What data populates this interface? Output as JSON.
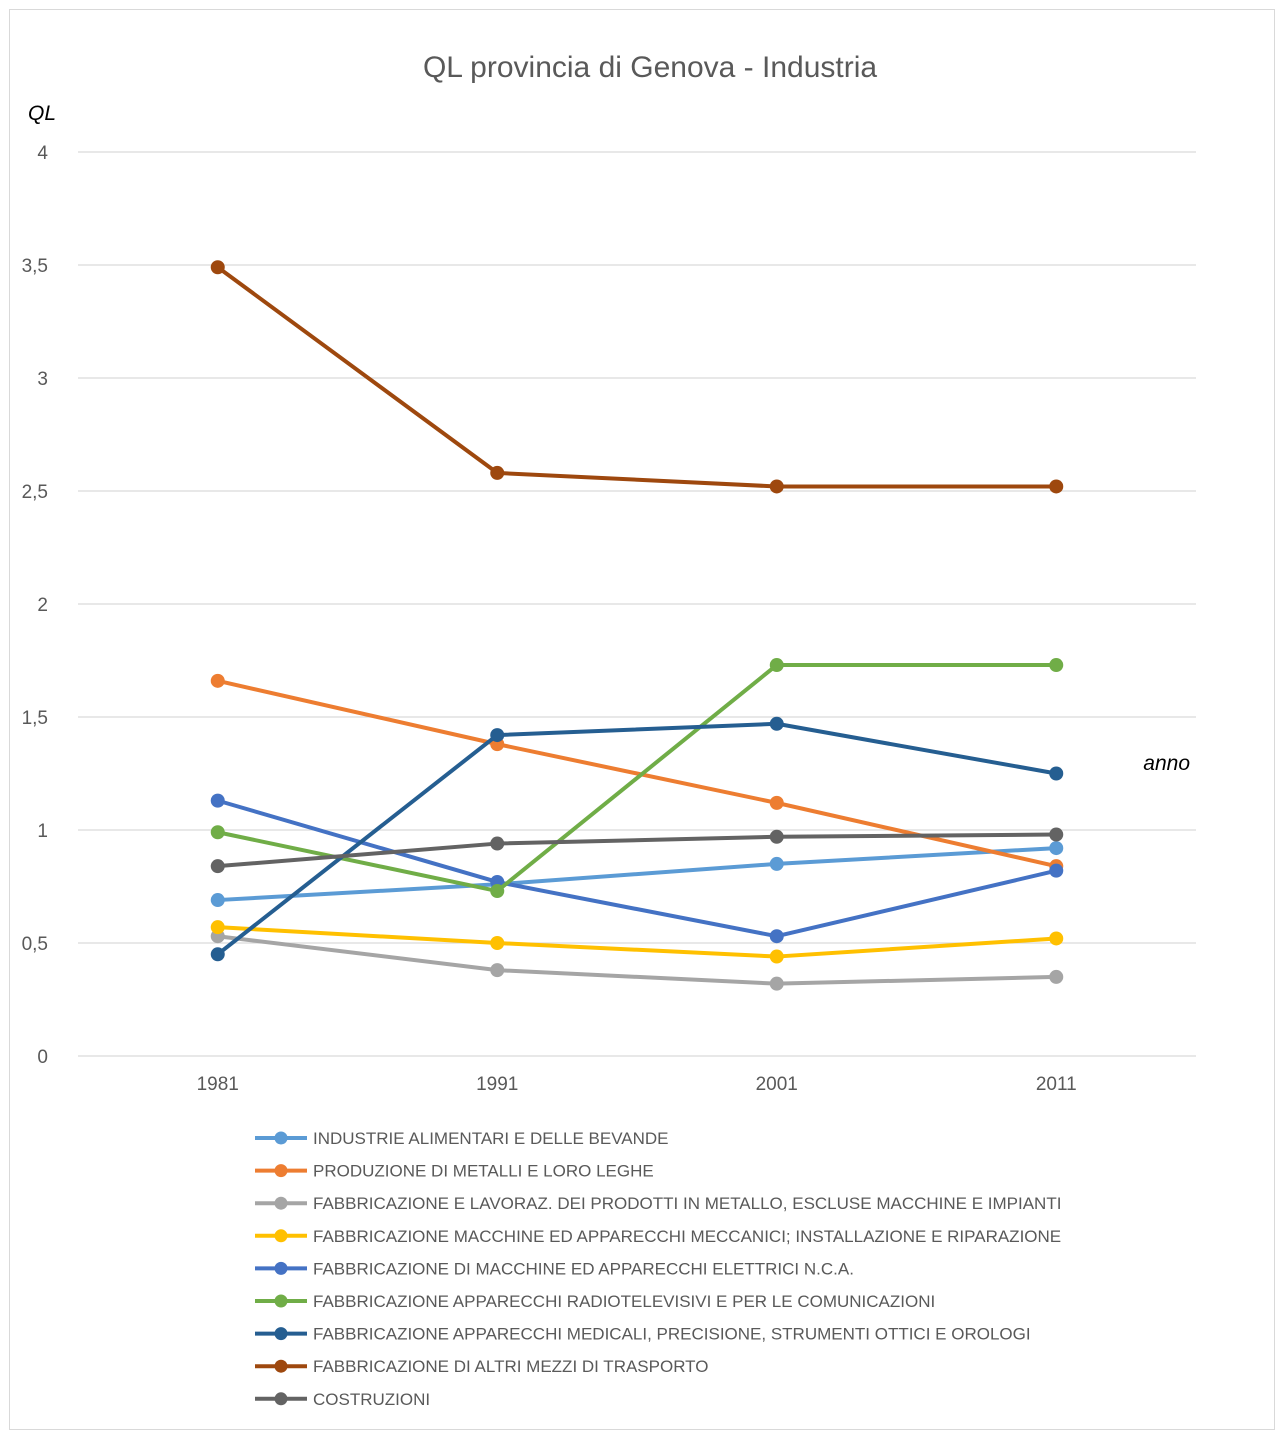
{
  "chart_data": {
    "type": "line",
    "title": "QL provincia di Genova - Industria",
    "ylabel": "QL",
    "xlabel": "anno",
    "categories": [
      "1981",
      "1991",
      "2001",
      "2011"
    ],
    "ylim": [
      0,
      4
    ],
    "yticks": [
      "0",
      "0,5",
      "1",
      "1,5",
      "2",
      "2,5",
      "3",
      "3,5",
      "4"
    ],
    "grid": true,
    "legend_position": "bottom",
    "series": [
      {
        "name": "INDUSTRIE ALIMENTARI E DELLE BEVANDE",
        "color": "#5b9bd5",
        "values": [
          0.69,
          0.76,
          0.85,
          0.92
        ]
      },
      {
        "name": "PRODUZIONE DI METALLI E LORO LEGHE",
        "color": "#ed7d31",
        "values": [
          1.66,
          1.38,
          1.12,
          0.84
        ]
      },
      {
        "name": "FABBRICAZIONE E LAVORAZ. DEI PRODOTTI IN METALLO, ESCLUSE MACCHINE E IMPIANTI",
        "color": "#a5a5a5",
        "values": [
          0.53,
          0.38,
          0.32,
          0.35
        ]
      },
      {
        "name": "FABBRICAZIONE MACCHINE ED APPARECCHI MECCANICI; INSTALLAZIONE E RIPARAZIONE",
        "color": "#ffc000",
        "values": [
          0.57,
          0.5,
          0.44,
          0.52
        ]
      },
      {
        "name": "FABBRICAZIONE DI MACCHINE ED APPARECCHI ELETTRICI N.C.A.",
        "color": "#4472c4",
        "values": [
          1.13,
          0.77,
          0.53,
          0.82
        ]
      },
      {
        "name": "FABBRICAZIONE APPARECCHI RADIOTELEVISIVI E PER LE COMUNICAZIONI",
        "color": "#70ad47",
        "values": [
          0.99,
          0.73,
          1.73,
          1.73
        ]
      },
      {
        "name": "FABBRICAZIONE APPARECCHI MEDICALI, PRECISIONE, STRUMENTI OTTICI E OROLOGI",
        "color": "#255e91",
        "values": [
          0.45,
          1.42,
          1.47,
          1.25
        ]
      },
      {
        "name": "FABBRICAZIONE DI ALTRI MEZZI DI TRASPORTO",
        "color": "#9e480e",
        "values": [
          3.49,
          2.58,
          2.52,
          2.52
        ]
      },
      {
        "name": "COSTRUZIONI",
        "color": "#636363",
        "values": [
          0.84,
          0.94,
          0.97,
          0.98
        ]
      }
    ]
  }
}
